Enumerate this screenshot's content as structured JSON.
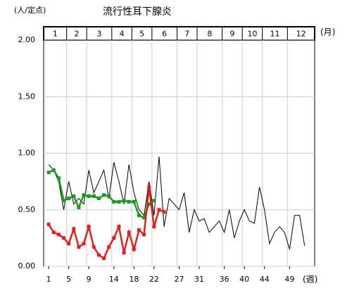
{
  "chart_data": {
    "type": "line",
    "title": "流行性耳下腺炎",
    "y_unit_label": "(人/定点)",
    "x_unit_label": "(週)",
    "month_unit_label": "(月)",
    "months": [
      "1",
      "2",
      "3",
      "4",
      "5",
      "6",
      "7",
      "8",
      "9",
      "10",
      "11",
      "12"
    ],
    "x": [
      1,
      2,
      3,
      4,
      5,
      6,
      7,
      8,
      9,
      10,
      11,
      12,
      13,
      14,
      15,
      16,
      17,
      18,
      19,
      20,
      21,
      22,
      23,
      24,
      25,
      26,
      27,
      28,
      29,
      30,
      31,
      32,
      33,
      34,
      35,
      36,
      37,
      38,
      39,
      40,
      41,
      42,
      43,
      44,
      45,
      46,
      47,
      48,
      49,
      50,
      51,
      52
    ],
    "xlim": [
      0,
      54
    ],
    "xticks": [
      1,
      5,
      9,
      14,
      18,
      22,
      27,
      31,
      36,
      40,
      44,
      49
    ],
    "ylim": [
      0,
      2
    ],
    "yticks": [
      {
        "value": 0,
        "label": "0.00"
      },
      {
        "value": 0.5,
        "label": "0.50"
      },
      {
        "value": 1,
        "label": "1.00"
      },
      {
        "value": 1.5,
        "label": "1.50"
      },
      {
        "value": 2,
        "label": "2.00"
      }
    ],
    "grid": true,
    "series": [
      {
        "color": "#000000",
        "marker": false,
        "values": [
          0.9,
          0.85,
          0.75,
          0.5,
          0.75,
          0.55,
          0.6,
          0.55,
          0.85,
          0.65,
          0.75,
          0.85,
          0.6,
          0.92,
          0.75,
          0.55,
          0.9,
          0.65,
          0.5,
          0.45,
          0.75,
          0.45,
          0.97,
          0.35,
          0.6,
          0.55,
          0.5,
          0.65,
          0.3,
          0.5,
          0.4,
          0.42,
          0.3,
          0.35,
          0.4,
          0.3,
          0.5,
          0.25,
          0.4,
          0.5,
          0.4,
          0.38,
          0.7,
          0.5,
          0.2,
          0.3,
          0.35,
          0.3,
          0.15,
          0.45,
          0.45,
          0.18
        ]
      },
      {
        "color": "#1a9a1a",
        "marker": true,
        "values": [
          0.83,
          0.85,
          0.78,
          0.58,
          0.6,
          0.62,
          0.52,
          0.63,
          0.62,
          0.62,
          0.6,
          0.63,
          0.62,
          0.57,
          0.57,
          0.58,
          0.57,
          0.57,
          0.45,
          0.43,
          0.55,
          0.58,
          null,
          null,
          null,
          null,
          null,
          null,
          null,
          null,
          null,
          null,
          null,
          null,
          null,
          null,
          null,
          null,
          null,
          null,
          null,
          null,
          null,
          null,
          null,
          null,
          null,
          null,
          null,
          null,
          null,
          null
        ]
      },
      {
        "color": "#e02020",
        "marker": true,
        "values": [
          0.37,
          0.3,
          0.28,
          0.25,
          0.2,
          0.33,
          0.17,
          0.2,
          0.35,
          0.17,
          0.1,
          0.07,
          0.17,
          0.25,
          0.35,
          0.12,
          0.3,
          0.15,
          0.32,
          0.28,
          0.7,
          0.35,
          0.5,
          0.48,
          null,
          null,
          null,
          null,
          null,
          null,
          null,
          null,
          null,
          null,
          null,
          null,
          null,
          null,
          null,
          null,
          null,
          null,
          null,
          null,
          null,
          null,
          null,
          null,
          null,
          null,
          null,
          null
        ]
      }
    ]
  }
}
